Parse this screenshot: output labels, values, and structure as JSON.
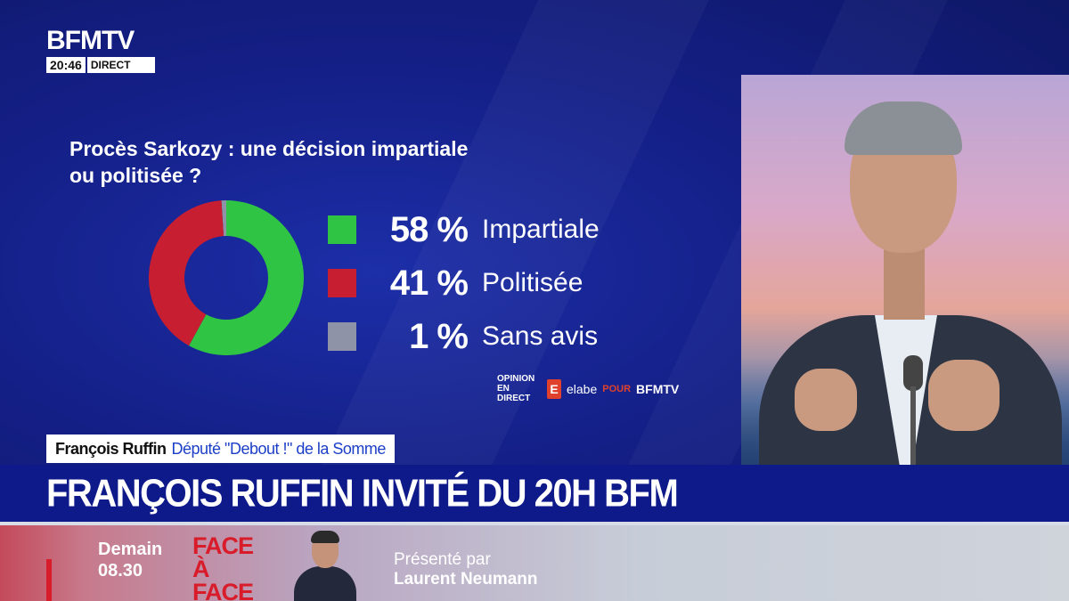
{
  "channel": {
    "logo": "BFMTV",
    "time": "20:46",
    "live_label": "DIRECT"
  },
  "poll": {
    "title_line1": "Procès Sarkozy : une décision impartiale",
    "title_line2": "ou politisée ?",
    "colors": {
      "impartiale": "#2fc444",
      "politisee": "#c81e32",
      "sans_avis": "#8f93a8"
    },
    "results": [
      {
        "pct_label": "58 %",
        "value": 58,
        "label": "Impartiale",
        "color": "#2fc444"
      },
      {
        "pct_label": "41 %",
        "value": 41,
        "label": "Politisée",
        "color": "#c81e32"
      },
      {
        "pct_label": "1 %",
        "value": 1,
        "label": "Sans avis",
        "color": "#8f93a8"
      }
    ],
    "source": {
      "opinion_line1": "OPINION",
      "opinion_line2": "EN DIRECT",
      "e_glyph": "E",
      "institute": "elabe",
      "pour": "POUR",
      "client": "BFMTV"
    }
  },
  "lower_third": {
    "name": "François Ruffin",
    "role": "Député \"Debout !\" de la Somme",
    "headline": "FRANÇOIS RUFFIN INVITÉ DU 20H BFM"
  },
  "promo": {
    "day": "Demain",
    "time": "08.30",
    "show_line1": "FACE",
    "show_line2": "À FACE",
    "presented_by": "Présenté par",
    "presenter": "Laurent Neumann"
  }
}
